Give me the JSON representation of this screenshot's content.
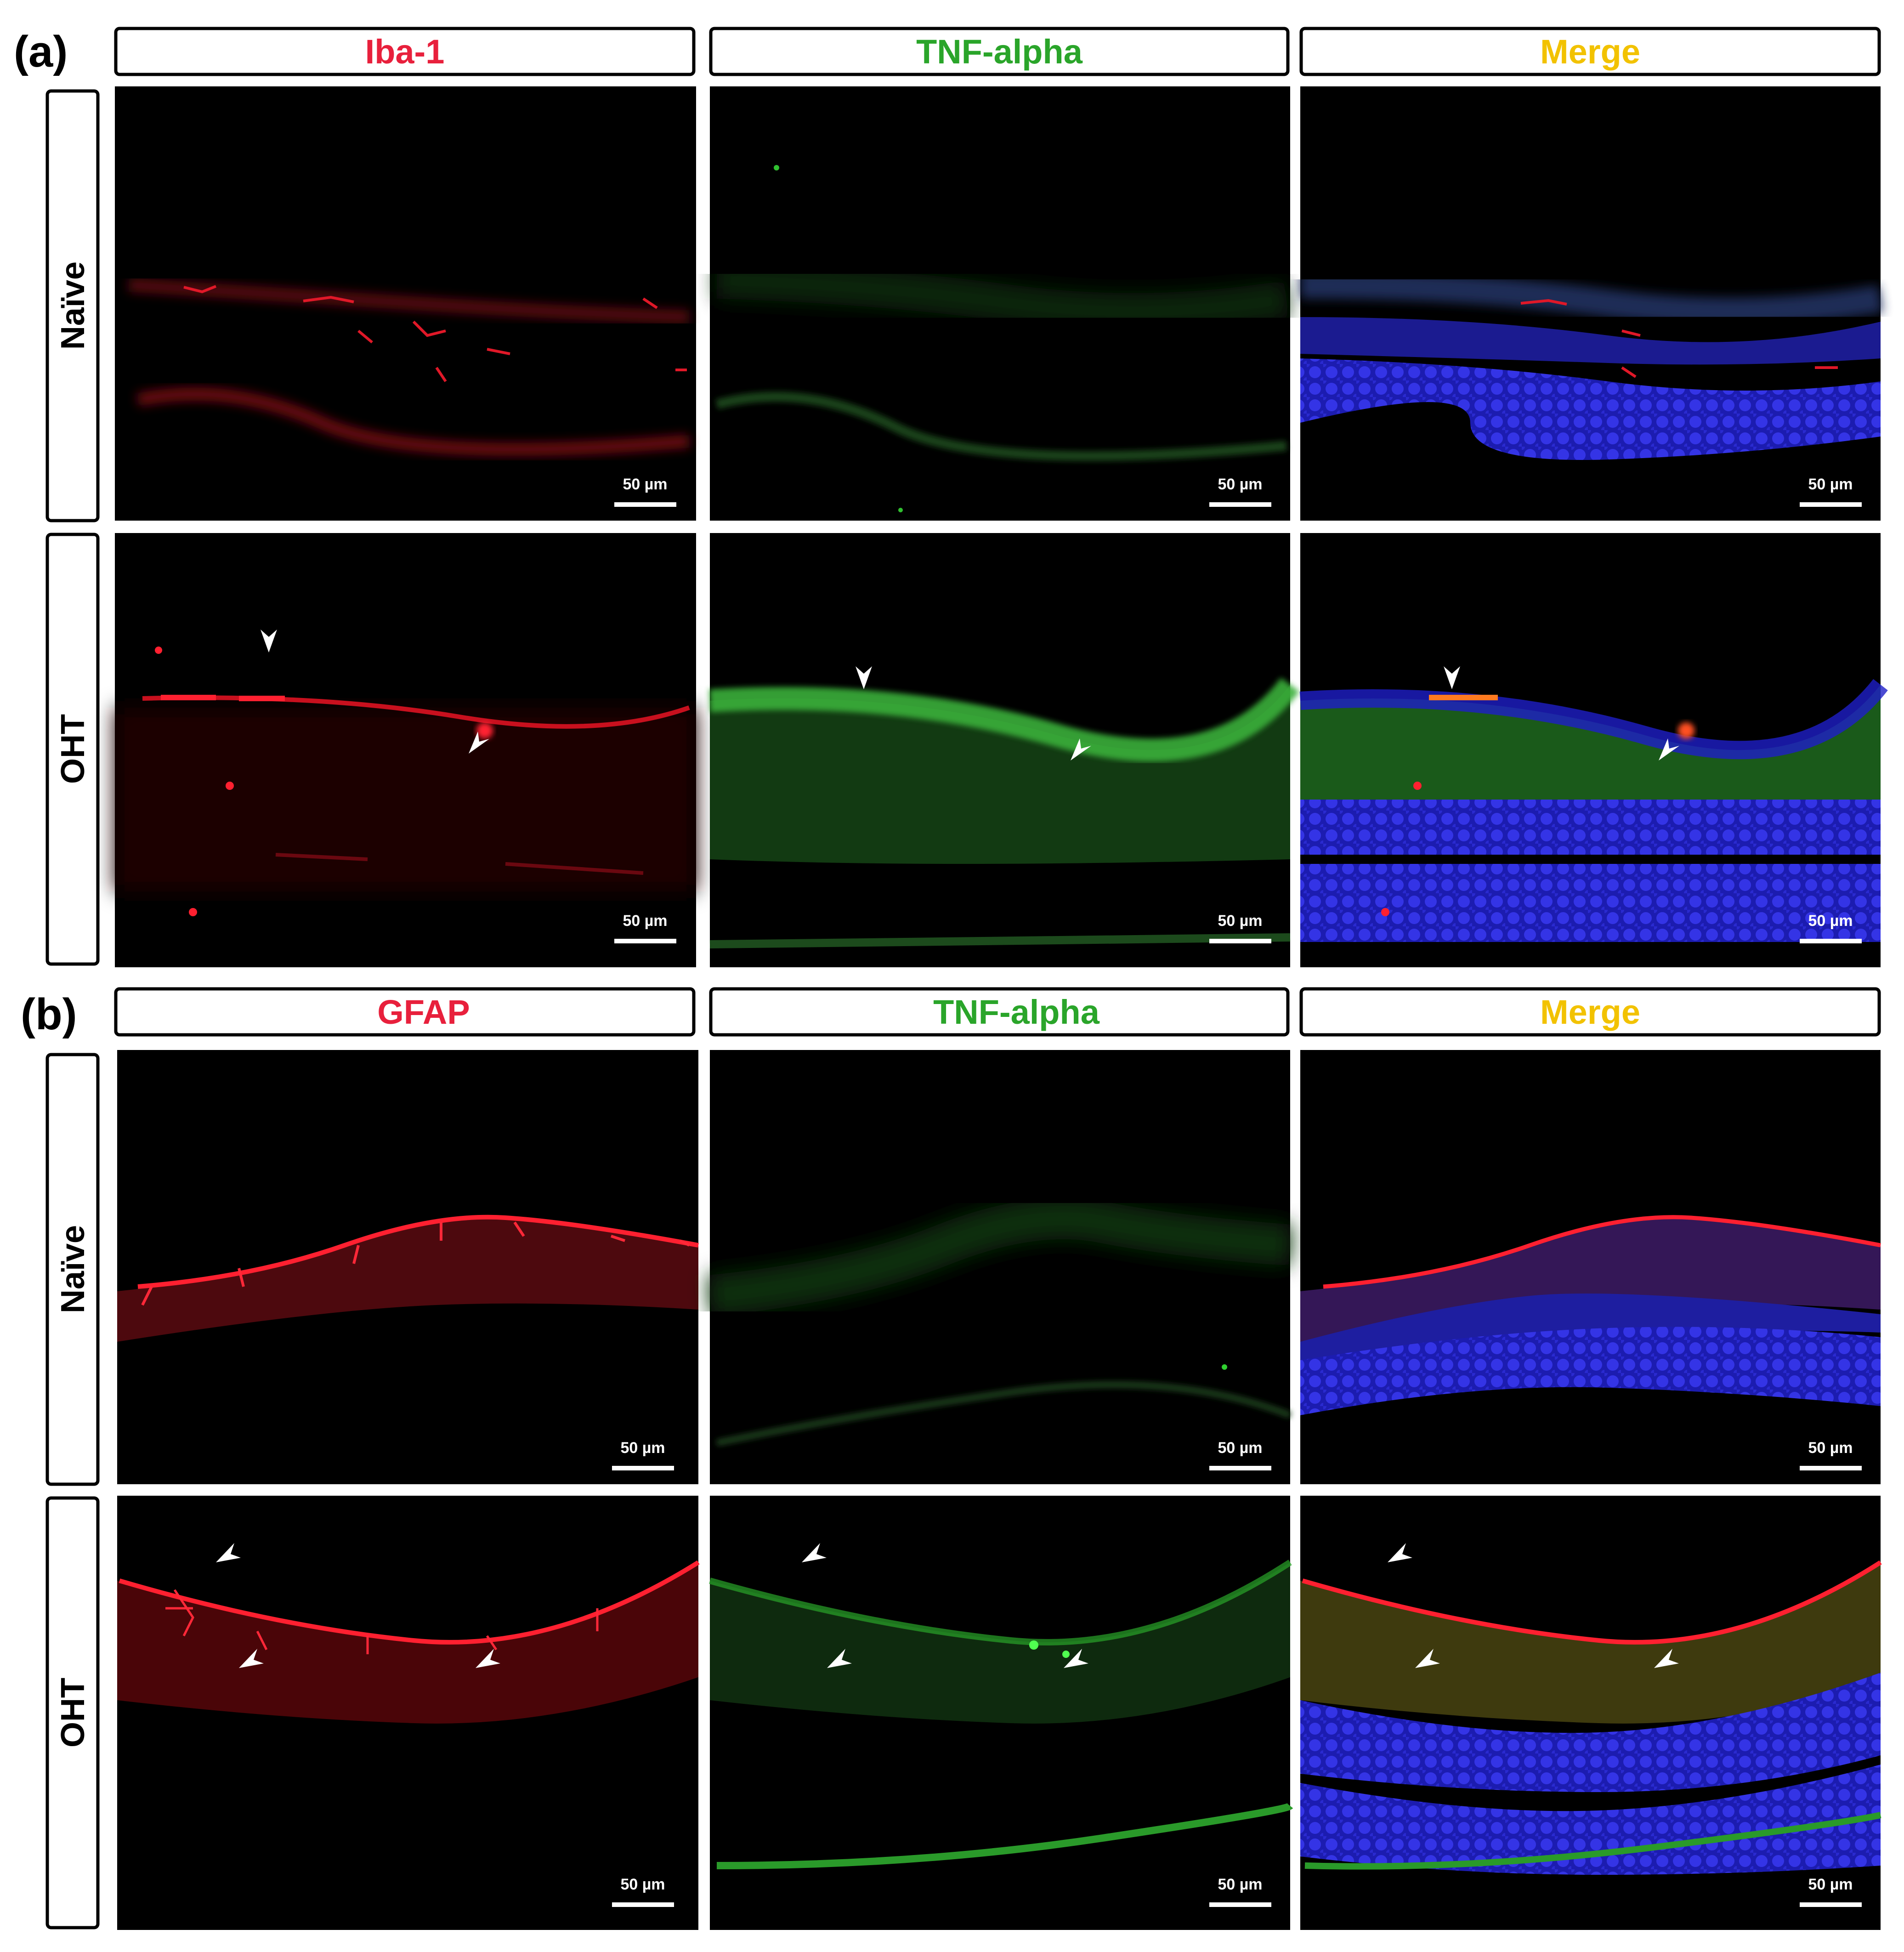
{
  "panels": [
    {
      "label": "(a)",
      "channels": [
        "Iba-1",
        "TNF-alpha",
        "Merge"
      ],
      "conditions": [
        "Naïve",
        "OHT"
      ],
      "scale_bar": "50 µm",
      "arrowheads": "OHT row"
    },
    {
      "label": "(b)",
      "channels": [
        "GFAP",
        "TNF-alpha",
        "Merge"
      ],
      "conditions": [
        "Naïve",
        "OHT"
      ],
      "scale_bar": "50 µm",
      "arrowheads": "OHT row"
    }
  ],
  "colors": {
    "red_channel": "#e8203c",
    "green_channel": "#2aa52a",
    "merge": "#f2c200",
    "nuclei_blue": "#2323c8",
    "background": "#000000"
  }
}
